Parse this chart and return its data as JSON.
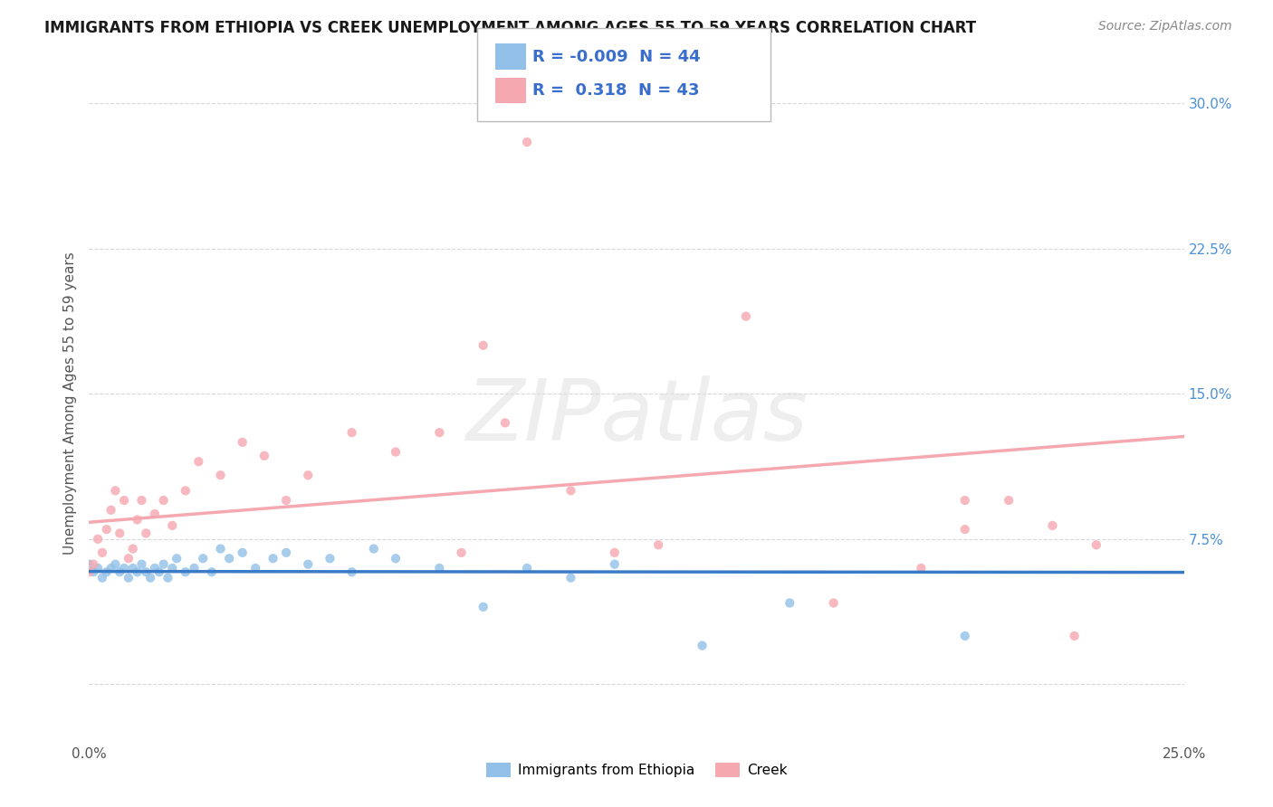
{
  "title": "IMMIGRANTS FROM ETHIOPIA VS CREEK UNEMPLOYMENT AMONG AGES 55 TO 59 YEARS CORRELATION CHART",
  "source": "Source: ZipAtlas.com",
  "ylabel": "Unemployment Among Ages 55 to 59 years",
  "xlim": [
    0.0,
    0.25
  ],
  "ylim": [
    -0.03,
    0.32
  ],
  "yticks": [
    0.0,
    0.075,
    0.15,
    0.225,
    0.3
  ],
  "yticklabels_right": [
    "",
    "7.5%",
    "15.0%",
    "22.5%",
    "30.0%"
  ],
  "xticks": [
    0.0,
    0.05,
    0.1,
    0.15,
    0.2,
    0.25
  ],
  "xticklabels": [
    "0.0%",
    "",
    "",
    "",
    "",
    "25.0%"
  ],
  "legend_R1": "-0.009",
  "legend_N1": "44",
  "legend_R2": "0.318",
  "legend_N2": "43",
  "ethiopia_color": "#92c0e8",
  "creek_color": "#f5a8b0",
  "ethiopia_line_color": "#3a7bc8",
  "creek_line_color": "#e86070",
  "tick_color_right": "#4a90d9",
  "background_color": "#ffffff",
  "grid_color": "#d8d8d8",
  "watermark_color": "#e0e0e0",
  "ethiopia_x": [
    0.0,
    0.001,
    0.002,
    0.003,
    0.004,
    0.005,
    0.006,
    0.007,
    0.008,
    0.009,
    0.01,
    0.011,
    0.012,
    0.013,
    0.014,
    0.015,
    0.016,
    0.017,
    0.018,
    0.019,
    0.02,
    0.022,
    0.024,
    0.026,
    0.028,
    0.03,
    0.032,
    0.035,
    0.038,
    0.042,
    0.045,
    0.05,
    0.055,
    0.06,
    0.065,
    0.07,
    0.08,
    0.09,
    0.1,
    0.11,
    0.12,
    0.14,
    0.16,
    0.2
  ],
  "ethiopia_y": [
    0.062,
    0.058,
    0.06,
    0.055,
    0.058,
    0.06,
    0.062,
    0.058,
    0.06,
    0.055,
    0.06,
    0.058,
    0.062,
    0.058,
    0.055,
    0.06,
    0.058,
    0.062,
    0.055,
    0.06,
    0.065,
    0.058,
    0.06,
    0.065,
    0.058,
    0.07,
    0.065,
    0.068,
    0.06,
    0.065,
    0.068,
    0.062,
    0.065,
    0.058,
    0.07,
    0.065,
    0.06,
    0.04,
    0.06,
    0.055,
    0.062,
    0.02,
    0.042,
    0.025
  ],
  "creek_x": [
    0.0,
    0.001,
    0.002,
    0.003,
    0.004,
    0.005,
    0.006,
    0.007,
    0.008,
    0.009,
    0.01,
    0.011,
    0.012,
    0.013,
    0.015,
    0.017,
    0.019,
    0.022,
    0.025,
    0.03,
    0.035,
    0.04,
    0.045,
    0.05,
    0.06,
    0.07,
    0.08,
    0.09,
    0.1,
    0.11,
    0.12,
    0.13,
    0.15,
    0.17,
    0.19,
    0.2,
    0.21,
    0.22,
    0.225,
    0.23,
    0.2,
    0.085,
    0.095
  ],
  "creek_y": [
    0.058,
    0.062,
    0.075,
    0.068,
    0.08,
    0.09,
    0.1,
    0.078,
    0.095,
    0.065,
    0.07,
    0.085,
    0.095,
    0.078,
    0.088,
    0.095,
    0.082,
    0.1,
    0.115,
    0.108,
    0.125,
    0.118,
    0.095,
    0.108,
    0.13,
    0.12,
    0.13,
    0.175,
    0.28,
    0.1,
    0.068,
    0.072,
    0.19,
    0.042,
    0.06,
    0.095,
    0.095,
    0.082,
    0.025,
    0.072,
    0.08,
    0.068,
    0.135
  ],
  "title_fontsize": 12,
  "source_fontsize": 10,
  "tick_fontsize": 11,
  "ylabel_fontsize": 11,
  "legend_fontsize": 13,
  "scatter_size": 55
}
